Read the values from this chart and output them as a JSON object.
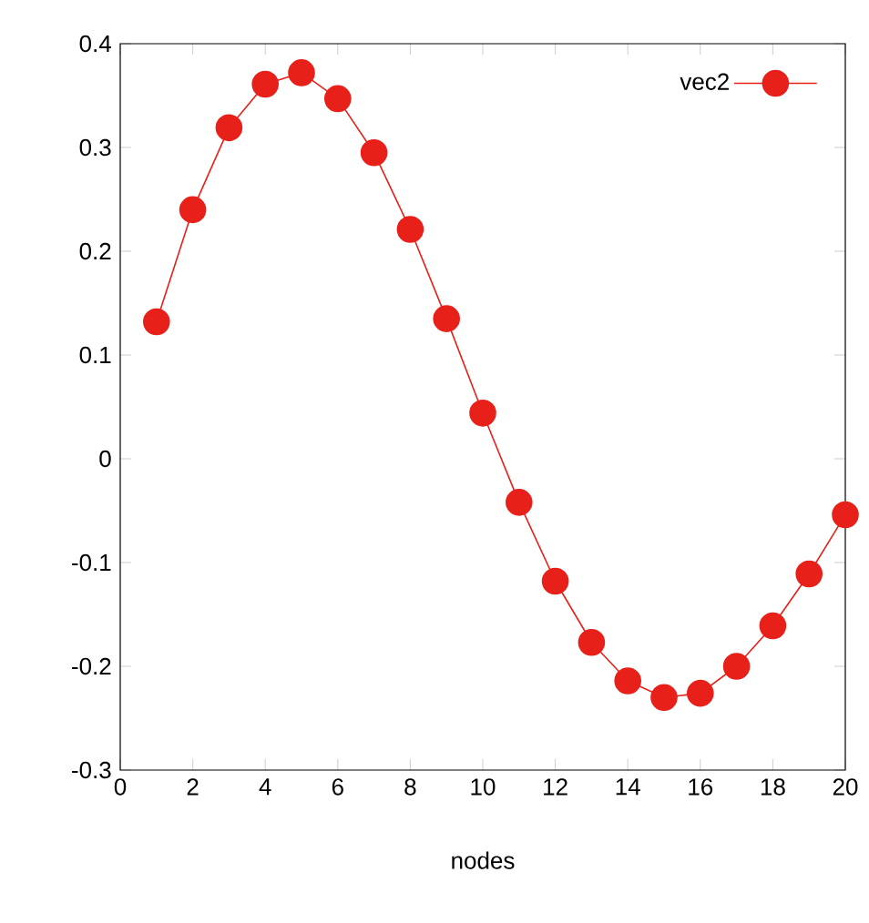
{
  "chart_data": {
    "type": "line",
    "xlabel": "nodes",
    "x": [
      1,
      2,
      3,
      4,
      5,
      6,
      7,
      8,
      9,
      10,
      11,
      12,
      13,
      14,
      15,
      16,
      17,
      18,
      19,
      20
    ],
    "series": [
      {
        "name": "vec2",
        "color": "#e8201a",
        "values": [
          0.132,
          0.24,
          0.319,
          0.361,
          0.372,
          0.347,
          0.295,
          0.221,
          0.135,
          0.044,
          -0.042,
          -0.118,
          -0.177,
          -0.214,
          -0.23,
          -0.226,
          -0.2,
          -0.161,
          -0.111,
          -0.054
        ]
      }
    ],
    "xlim": [
      0,
      20
    ],
    "ylim": [
      -0.3,
      0.4
    ],
    "xticks": [
      0,
      2,
      4,
      6,
      8,
      10,
      12,
      14,
      16,
      18,
      20
    ],
    "yticks": [
      -0.3,
      -0.2,
      -0.1,
      0,
      0.1,
      0.2,
      0.3,
      0.4
    ],
    "legend": "top right",
    "marker": "circle",
    "line_style": "solid",
    "grid": false
  }
}
